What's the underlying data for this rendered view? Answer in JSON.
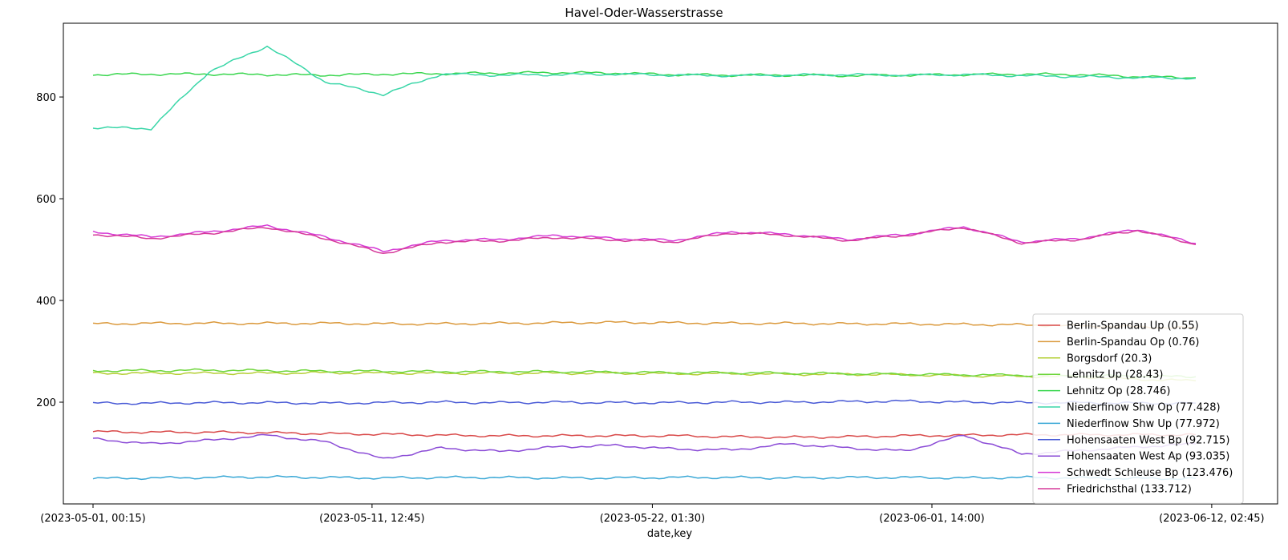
{
  "chart_data": {
    "type": "line",
    "title": "Havel-Oder-Wasserstrasse",
    "xlabel": "date,key",
    "ylabel": "",
    "x_ticks": [
      "(2023-05-01, 00:15)",
      "(2023-05-11, 12:45)",
      "(2023-05-22, 01:30)",
      "(2023-06-01, 14:00)",
      "(2023-06-12, 02:45)"
    ],
    "x_range": [
      0,
      41.5
    ],
    "x_tick_positions": [
      0,
      10.5,
      21.05,
      31.57,
      42.1
    ],
    "y_ticks": [
      200,
      400,
      600,
      800
    ],
    "ylim": [
      0,
      945
    ],
    "grid": false,
    "legend_position": "lower-right",
    "series": [
      {
        "name": "Berlin-Spandau Up (0.55)",
        "color": "#d94a4a",
        "values": [
          142,
          141,
          141,
          140,
          138,
          137,
          135,
          134,
          134,
          134,
          134,
          132,
          131,
          132,
          134,
          135,
          136,
          136,
          136,
          136
        ]
      },
      {
        "name": "Berlin-Spandau Op (0.76)",
        "color": "#db9a3e",
        "values": [
          354,
          355,
          355,
          355,
          355,
          354,
          354,
          355,
          356,
          357,
          356,
          355,
          355,
          354,
          354,
          353,
          352,
          350,
          348,
          346
        ]
      },
      {
        "name": "Borgsdorf (20.3)",
        "color": "#b5cf36",
        "values": [
          257,
          257,
          257,
          257,
          258,
          257,
          257,
          257,
          257,
          257,
          256,
          256,
          255,
          255,
          254,
          252,
          251,
          250,
          245,
          242
        ]
      },
      {
        "name": "Lehnitz Up (28.43)",
        "color": "#6fd63c",
        "values": [
          262,
          262,
          263,
          262,
          261,
          261,
          260,
          260,
          260,
          259,
          258,
          258,
          257,
          256,
          255,
          254,
          253,
          252,
          251,
          250
        ]
      },
      {
        "name": "Lehnitz Op (28.746)",
        "color": "#3ad64f",
        "values": [
          844,
          845,
          845,
          844,
          843,
          845,
          846,
          847,
          848,
          847,
          844,
          843,
          843,
          842,
          843,
          844,
          845,
          844,
          840,
          838
        ]
      },
      {
        "name": "Niederfinow Shw Op (77.428)",
        "color": "#3ad6a8",
        "values": [
          740,
          738,
          850,
          900,
          830,
          805,
          845,
          843,
          844,
          845,
          843,
          842,
          843,
          844,
          843,
          844,
          842,
          840,
          838,
          837
        ]
      },
      {
        "name": "Niederfinow Shw Up (77.972)",
        "color": "#3aa8d6",
        "values": [
          50,
          51,
          52,
          53,
          52,
          51,
          52,
          52,
          51,
          51,
          52,
          52,
          51,
          52,
          52,
          51,
          52,
          51,
          50,
          50
        ]
      },
      {
        "name": "Hohensaaten West Bp (92.715)",
        "color": "#4a5bd6",
        "values": [
          198,
          198,
          199,
          199,
          198,
          199,
          200,
          199,
          200,
          199,
          199,
          200,
          200,
          201,
          202,
          200,
          199,
          199,
          198,
          198
        ]
      },
      {
        "name": "Hohensaaten West Ap (93.035)",
        "color": "#8a4ad6",
        "values": [
          128,
          118,
          125,
          135,
          122,
          88,
          110,
          103,
          112,
          115,
          108,
          106,
          118,
          110,
          104,
          135,
          98,
          105,
          112,
          118
        ]
      },
      {
        "name": "Schwedt Schleuse Bp (123.476)",
        "color": "#d63ad6",
        "values": [
          535,
          525,
          535,
          547,
          525,
          497,
          518,
          520,
          528,
          522,
          518,
          535,
          530,
          520,
          530,
          545,
          515,
          522,
          540,
          512
        ]
      },
      {
        "name": "Friedrichsthal (133.712)",
        "color": "#d63a9a",
        "values": [
          530,
          522,
          532,
          544,
          522,
          493,
          515,
          517,
          524,
          519,
          515,
          533,
          528,
          518,
          528,
          544,
          513,
          520,
          538,
          510
        ]
      }
    ]
  }
}
